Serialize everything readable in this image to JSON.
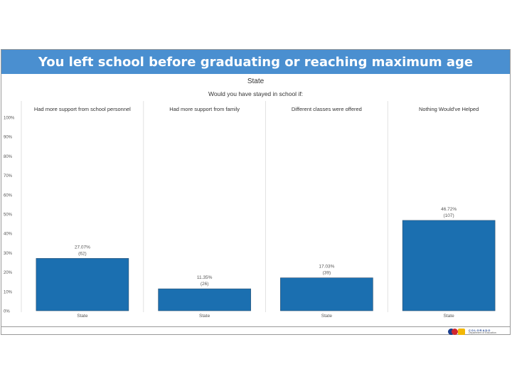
{
  "header": {
    "title": "You left school before graduating or reaching maximum age",
    "subtitle": "State",
    "question": "Would you have stayed in school if:"
  },
  "colors": {
    "title_bar": "#4a8fd0",
    "bar": "#1b6fb0",
    "bar_edge": "#2a4f70",
    "divider": "#e2e2e2"
  },
  "chart_data": {
    "type": "bar",
    "title": "You left school before graduating or reaching maximum age",
    "subtitle": "Would you have stayed in school if:",
    "ylim": [
      0,
      100
    ],
    "yticks": [
      0,
      10,
      20,
      30,
      40,
      50,
      60,
      70,
      80,
      90,
      100
    ],
    "ytick_labels": [
      "0%",
      "10%",
      "20%",
      "30%",
      "40%",
      "50%",
      "60%",
      "70%",
      "80%",
      "90%",
      "100%"
    ],
    "panels": [
      {
        "name": "Had more support from school personnel",
        "category": "State",
        "value": 27.07,
        "label": "27.07%",
        "count": "(62)"
      },
      {
        "name": "Had more support from family",
        "category": "State",
        "value": 11.35,
        "label": "11.35%",
        "count": "(26)"
      },
      {
        "name": "Different classes were offered",
        "category": "State",
        "value": 17.03,
        "label": "17.03%",
        "count": "(39)"
      },
      {
        "name": "Nothing Would've Helped",
        "category": "State",
        "value": 46.72,
        "label": "46.72%",
        "count": "(107)"
      }
    ]
  },
  "logo": {
    "line1": "COLORADO",
    "line2": "Department of Education"
  }
}
